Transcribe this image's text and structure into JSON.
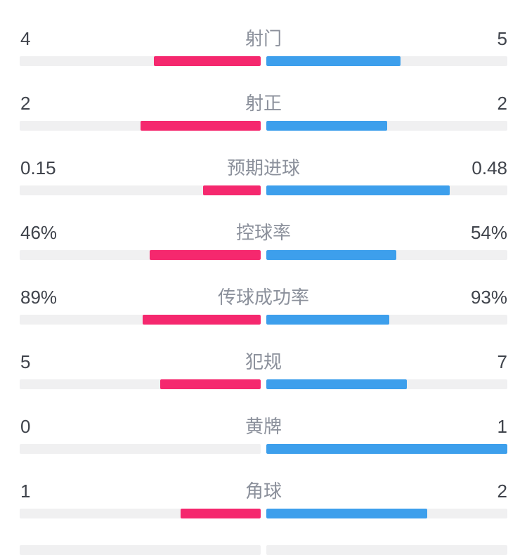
{
  "colors": {
    "home_bar": "#f5286e",
    "away_bar": "#3d9fec",
    "track": "#f0f0f1",
    "value_text": "#3f434b",
    "label_text": "#8b909b",
    "background": "#ffffff"
  },
  "stats": [
    {
      "label": "射门",
      "home": "4",
      "away": "5"
    },
    {
      "label": "射正",
      "home": "2",
      "away": "2"
    },
    {
      "label": "预期进球",
      "home": "0.15",
      "away": "0.48"
    },
    {
      "label": "控球率",
      "home": "46%",
      "away": "54%"
    },
    {
      "label": "传球成功率",
      "home": "89%",
      "away": "93%"
    },
    {
      "label": "犯规",
      "home": "5",
      "away": "7"
    },
    {
      "label": "黄牌",
      "home": "0",
      "away": "1"
    },
    {
      "label": "角球",
      "home": "1",
      "away": "2"
    }
  ],
  "chart_data": {
    "type": "bar",
    "orientation": "horizontal-paired-from-center",
    "categories": [
      "射门",
      "射正",
      "预期进球",
      "控球率",
      "传球成功率",
      "犯规",
      "黄牌",
      "角球"
    ],
    "series": [
      {
        "name": "left-team",
        "color": "#f5286e",
        "values": [
          4,
          2,
          0.15,
          46,
          89,
          5,
          0,
          1
        ]
      },
      {
        "name": "right-team",
        "color": "#3d9fec",
        "values": [
          5,
          2,
          0.48,
          54,
          93,
          7,
          1,
          2
        ]
      }
    ],
    "value_labels": {
      "left": [
        "4",
        "2",
        "0.15",
        "46%",
        "89%",
        "5",
        "0",
        "1"
      ],
      "right": [
        "5",
        "2",
        "0.48",
        "54%",
        "93%",
        "7",
        "1",
        "2"
      ]
    },
    "bar_length_rule": "value / (left + right) fraction of each half-track",
    "legend": "none",
    "grid": false
  }
}
